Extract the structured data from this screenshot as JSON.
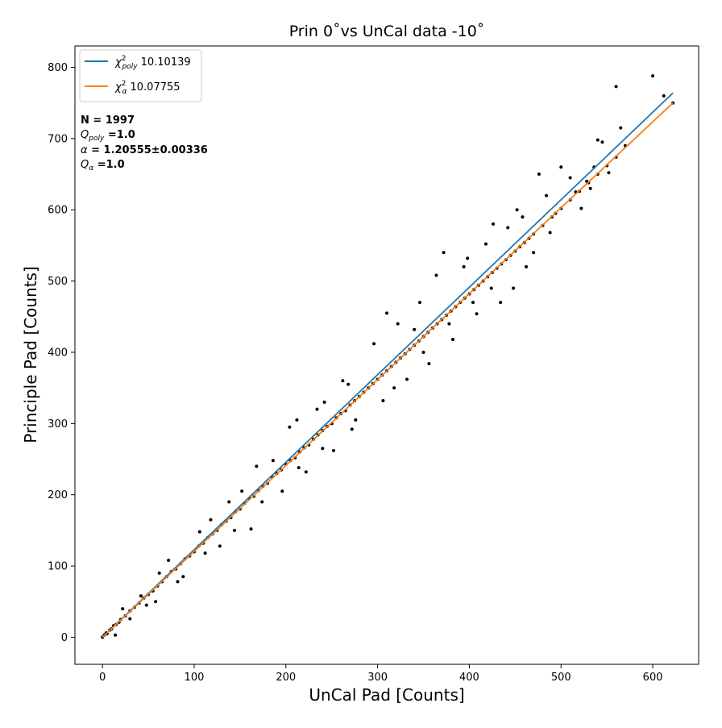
{
  "chart_data": {
    "type": "scatter",
    "title": "Prin 0˚vs UnCal data -10˚",
    "xlabel": "UnCal Pad [Counts]",
    "ylabel": "Principle Pad [Counts]",
    "xlim": [
      -30,
      650
    ],
    "ylim": [
      -38,
      830
    ],
    "x_ticks": [
      0,
      100,
      200,
      300,
      400,
      500,
      600
    ],
    "y_ticks": [
      0,
      100,
      200,
      300,
      400,
      500,
      600,
      700,
      800
    ],
    "grid": false,
    "legend_position": "top-left",
    "point_color": "#000000",
    "point_count": 1997,
    "sample_points": [
      [
        0,
        0
      ],
      [
        2,
        3
      ],
      [
        4,
        6
      ],
      [
        5,
        5
      ],
      [
        8,
        10
      ],
      [
        10,
        12
      ],
      [
        12,
        16
      ],
      [
        15,
        18
      ],
      [
        18,
        21
      ],
      [
        20,
        25
      ],
      [
        25,
        30
      ],
      [
        30,
        37
      ],
      [
        35,
        42
      ],
      [
        40,
        48
      ],
      [
        45,
        55
      ],
      [
        50,
        60
      ],
      [
        55,
        65
      ],
      [
        60,
        72
      ],
      [
        65,
        78
      ],
      [
        70,
        85
      ],
      [
        75,
        92
      ],
      [
        80,
        96
      ],
      [
        85,
        103
      ],
      [
        90,
        110
      ],
      [
        95,
        114
      ],
      [
        100,
        120
      ],
      [
        105,
        128
      ],
      [
        110,
        132
      ],
      [
        115,
        140
      ],
      [
        120,
        145
      ],
      [
        125,
        150
      ],
      [
        130,
        158
      ],
      [
        135,
        163
      ],
      [
        140,
        168
      ],
      [
        145,
        176
      ],
      [
        150,
        180
      ],
      [
        155,
        188
      ],
      [
        160,
        195
      ],
      [
        165,
        198
      ],
      [
        170,
        206
      ],
      [
        175,
        212
      ],
      [
        180,
        216
      ],
      [
        185,
        225
      ],
      [
        190,
        230
      ],
      [
        195,
        235
      ],
      [
        200,
        243
      ],
      [
        205,
        248
      ],
      [
        210,
        252
      ],
      [
        215,
        260
      ],
      [
        220,
        266
      ],
      [
        225,
        270
      ],
      [
        230,
        278
      ],
      [
        235,
        284
      ],
      [
        240,
        290
      ],
      [
        245,
        296
      ],
      [
        250,
        300
      ],
      [
        255,
        308
      ],
      [
        260,
        314
      ],
      [
        265,
        318
      ],
      [
        270,
        326
      ],
      [
        275,
        332
      ],
      [
        280,
        338
      ],
      [
        285,
        344
      ],
      [
        290,
        350
      ],
      [
        295,
        356
      ],
      [
        300,
        362
      ],
      [
        305,
        368
      ],
      [
        310,
        374
      ],
      [
        315,
        380
      ],
      [
        320,
        386
      ],
      [
        325,
        392
      ],
      [
        330,
        398
      ],
      [
        335,
        404
      ],
      [
        340,
        410
      ],
      [
        345,
        416
      ],
      [
        350,
        422
      ],
      [
        355,
        428
      ],
      [
        360,
        434
      ],
      [
        365,
        440
      ],
      [
        370,
        446
      ],
      [
        375,
        452
      ],
      [
        380,
        458
      ],
      [
        385,
        464
      ],
      [
        390,
        470
      ],
      [
        395,
        476
      ],
      [
        400,
        482
      ],
      [
        405,
        488
      ],
      [
        410,
        494
      ],
      [
        415,
        500
      ],
      [
        420,
        506
      ],
      [
        425,
        512
      ],
      [
        430,
        518
      ],
      [
        435,
        524
      ],
      [
        440,
        530
      ],
      [
        445,
        536
      ],
      [
        450,
        542
      ],
      [
        455,
        548
      ],
      [
        460,
        554
      ],
      [
        465,
        560
      ],
      [
        470,
        566
      ],
      [
        480,
        578
      ],
      [
        490,
        590
      ],
      [
        500,
        602
      ],
      [
        510,
        614
      ],
      [
        520,
        626
      ],
      [
        530,
        638
      ],
      [
        540,
        650
      ],
      [
        550,
        662
      ],
      [
        560,
        674
      ],
      [
        570,
        690
      ],
      [
        22,
        40
      ],
      [
        48,
        45
      ],
      [
        62,
        90
      ],
      [
        88,
        85
      ],
      [
        118,
        165
      ],
      [
        128,
        128
      ],
      [
        152,
        205
      ],
      [
        162,
        152
      ],
      [
        186,
        248
      ],
      [
        196,
        205
      ],
      [
        212,
        305
      ],
      [
        222,
        232
      ],
      [
        242,
        330
      ],
      [
        252,
        262
      ],
      [
        262,
        360
      ],
      [
        272,
        292
      ],
      [
        296,
        412
      ],
      [
        306,
        332
      ],
      [
        322,
        440
      ],
      [
        332,
        362
      ],
      [
        346,
        470
      ],
      [
        356,
        384
      ],
      [
        372,
        540
      ],
      [
        382,
        418
      ],
      [
        398,
        532
      ],
      [
        408,
        454
      ],
      [
        426,
        580
      ],
      [
        434,
        470
      ],
      [
        452,
        600
      ],
      [
        462,
        520
      ],
      [
        476,
        650
      ],
      [
        488,
        568
      ],
      [
        500,
        660
      ],
      [
        522,
        602
      ],
      [
        536,
        660
      ],
      [
        545,
        695
      ],
      [
        560,
        773
      ],
      [
        565,
        715
      ],
      [
        600,
        788
      ],
      [
        612,
        760
      ],
      [
        622,
        750
      ],
      [
        14,
        3
      ],
      [
        30,
        26
      ],
      [
        42,
        58
      ],
      [
        58,
        50
      ],
      [
        72,
        108
      ],
      [
        82,
        78
      ],
      [
        106,
        148
      ],
      [
        112,
        118
      ],
      [
        138,
        190
      ],
      [
        144,
        150
      ],
      [
        168,
        240
      ],
      [
        174,
        190
      ],
      [
        204,
        295
      ],
      [
        214,
        238
      ],
      [
        234,
        320
      ],
      [
        240,
        265
      ],
      [
        268,
        355
      ],
      [
        276,
        305
      ],
      [
        310,
        455
      ],
      [
        318,
        350
      ],
      [
        340,
        432
      ],
      [
        350,
        400
      ],
      [
        364,
        508
      ],
      [
        378,
        440
      ],
      [
        394,
        520
      ],
      [
        404,
        470
      ],
      [
        418,
        552
      ],
      [
        424,
        490
      ],
      [
        442,
        575
      ],
      [
        448,
        490
      ],
      [
        458,
        590
      ],
      [
        470,
        540
      ],
      [
        484,
        620
      ],
      [
        494,
        595
      ],
      [
        510,
        645
      ],
      [
        516,
        625
      ],
      [
        528,
        640
      ],
      [
        532,
        630
      ],
      [
        540,
        698
      ],
      [
        552,
        652
      ]
    ],
    "series": [
      {
        "name": "χ²_poly 10.10139",
        "color": "#1f77b4",
        "x": [
          0,
          622
        ],
        "y": [
          0,
          764
        ]
      },
      {
        "name": "χ²_α 10.07755",
        "color": "#ff7f0e",
        "x": [
          0,
          622
        ],
        "y": [
          0,
          750
        ]
      }
    ],
    "annotations": {
      "n": "N = 1997",
      "q_poly": "=1.0",
      "alpha": "= 1.20555±0.00336",
      "q_alpha": "=1.0"
    }
  }
}
